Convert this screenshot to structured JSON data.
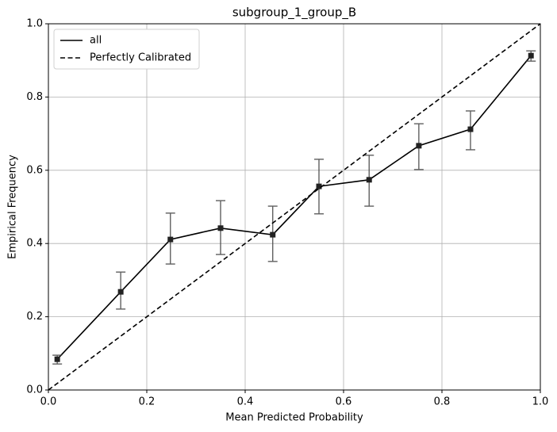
{
  "chart_data": {
    "type": "line",
    "title": "subgroup_1_group_B",
    "xlabel": "Mean Predicted Probability",
    "ylabel": "Empirical Frequency",
    "xlim": [
      0,
      1
    ],
    "ylim": [
      0,
      1
    ],
    "xticks": [
      {
        "value": 0,
        "label": "0.0"
      },
      0.2,
      0.4,
      0.6,
      0.8,
      {
        "value": 1,
        "label": "1.0"
      }
    ],
    "yticks": [
      {
        "value": 0,
        "label": "0.0"
      },
      0.2,
      0.4,
      0.6,
      0.8,
      {
        "value": 1,
        "label": "1.0"
      }
    ],
    "grid": true,
    "legend": "upper left",
    "series": [
      {
        "name": "all",
        "color": "#000000",
        "style": "solid",
        "markers": true,
        "x": [
          0.018,
          0.147,
          0.248,
          0.35,
          0.456,
          0.55,
          0.652,
          0.753,
          0.858,
          0.981
        ],
        "values": [
          0.084,
          0.268,
          0.411,
          0.442,
          0.424,
          0.556,
          0.574,
          0.667,
          0.712,
          0.913
        ],
        "yerr_minus": [
          0.013,
          0.047,
          0.067,
          0.072,
          0.073,
          0.075,
          0.072,
          0.065,
          0.056,
          0.015
        ],
        "yerr_plus": [
          0.011,
          0.054,
          0.072,
          0.075,
          0.078,
          0.074,
          0.067,
          0.06,
          0.05,
          0.013
        ]
      },
      {
        "name": "Perfectly Calibrated",
        "color": "#000000",
        "style": "dashed",
        "markers": false,
        "x": [
          0,
          1
        ],
        "values": [
          0,
          1
        ]
      }
    ]
  }
}
